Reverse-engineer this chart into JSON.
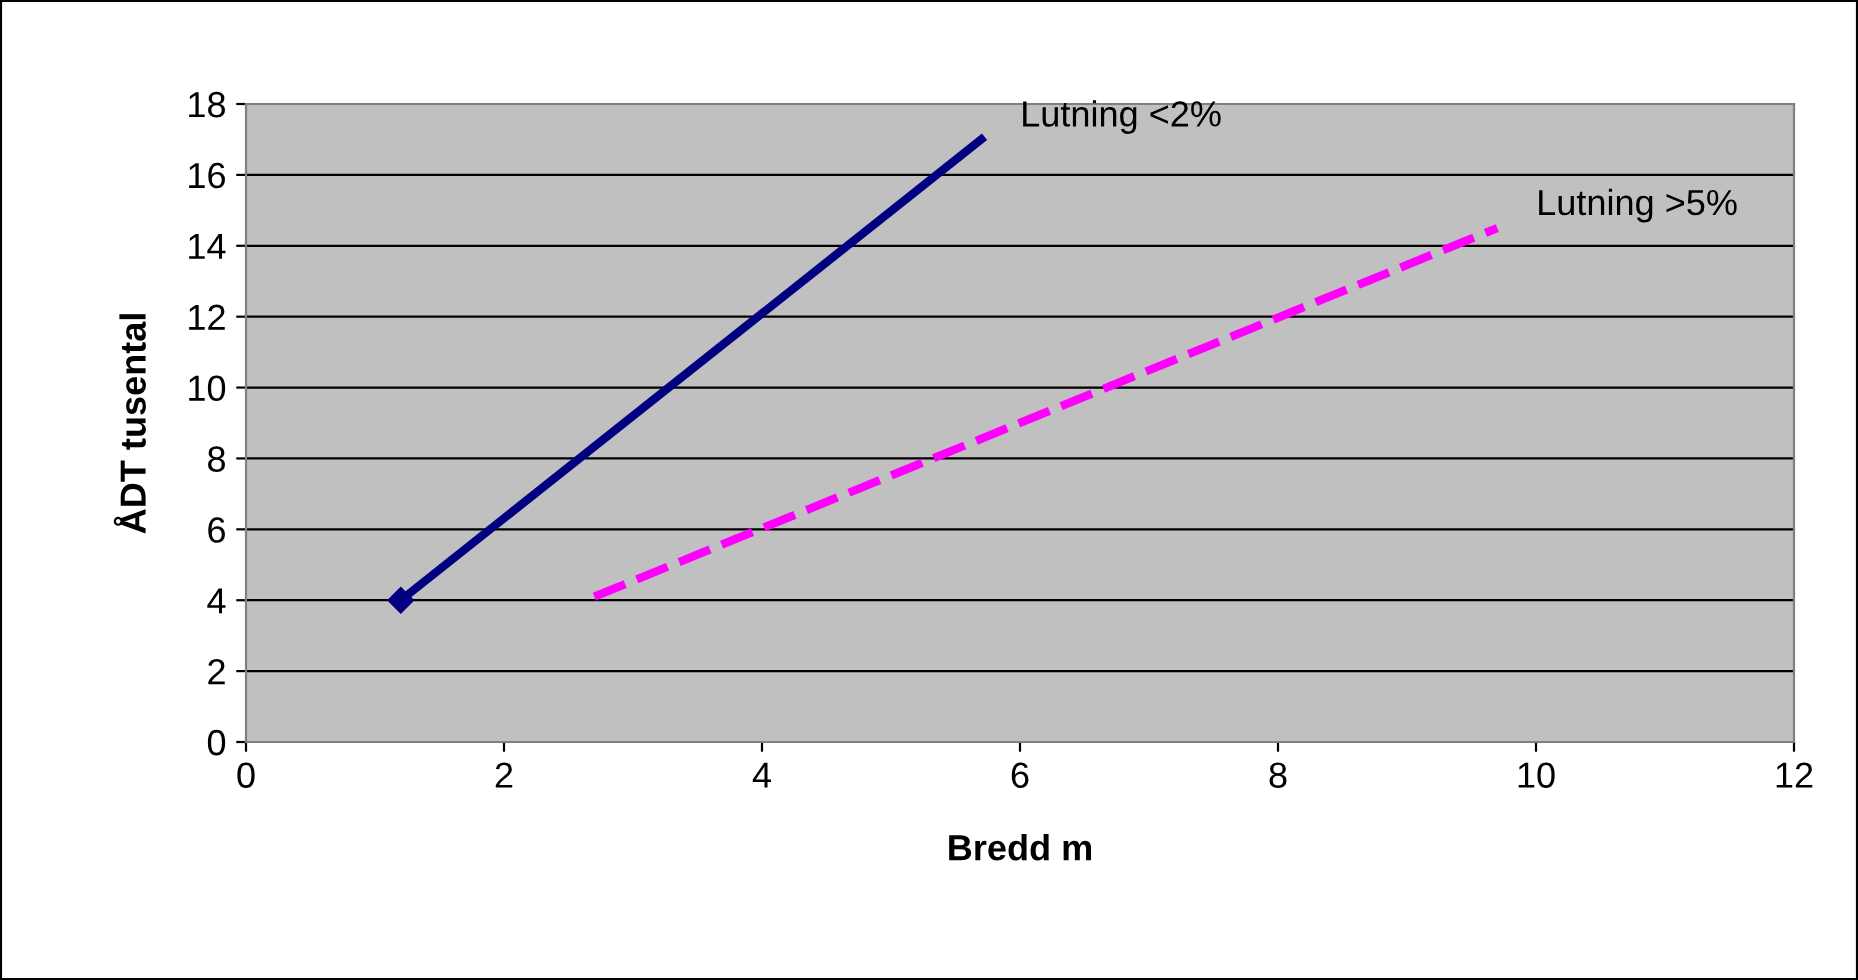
{
  "chart_data": {
    "type": "line",
    "xlabel": "Bredd m",
    "ylabel": "ÅDT tusental",
    "series": [
      {
        "name": "Lutning <2%",
        "color": "#000080",
        "x": [
          1.2,
          5.7
        ],
        "values": [
          4,
          17
        ],
        "line_style": "solid",
        "marker": "diamond"
      },
      {
        "name": "Lutning >5%",
        "color": "#ff00ff",
        "x": [
          2.7,
          9.7
        ],
        "values": [
          4.1,
          14.5
        ],
        "line_style": "dashed",
        "marker": "none"
      }
    ],
    "xlim": [
      0,
      12
    ],
    "xticks": [
      0,
      2,
      4,
      6,
      8,
      10,
      12
    ],
    "ylim": [
      0,
      18
    ],
    "yticks": [
      0,
      2,
      4,
      6,
      8,
      10,
      12,
      14,
      16,
      18
    ],
    "grid": "y",
    "legend": false
  }
}
